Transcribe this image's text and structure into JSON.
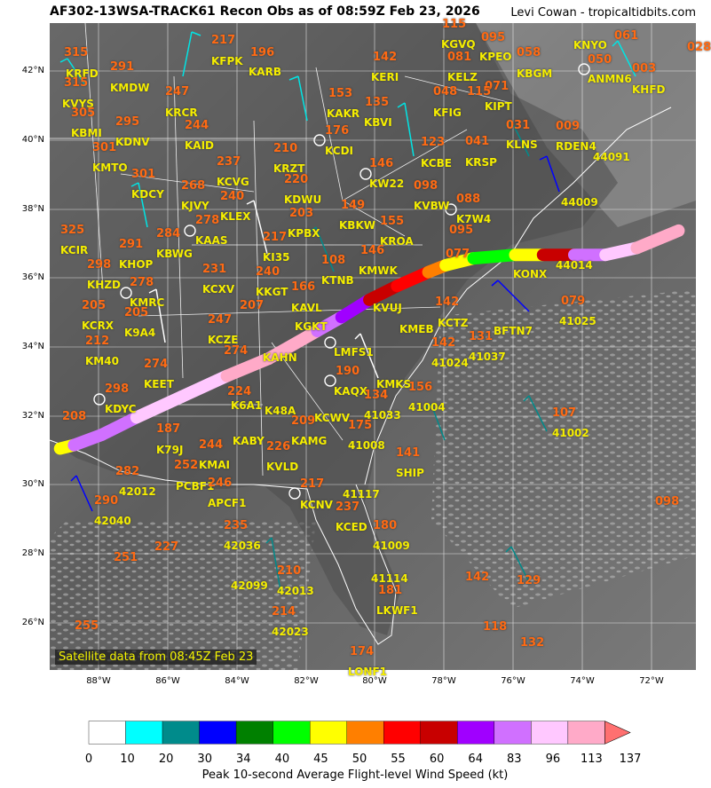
{
  "title": "AF302-13WSA-TRACK61 Recon Obs as of 08:59Z Feb 23, 2026",
  "credit": "Levi Cowan - tropicaltidbits.com",
  "satellite_note": "Satellite data from 08:45Z Feb 23",
  "lat_labels": [
    "42°N",
    "40°N",
    "38°N",
    "36°N",
    "34°N",
    "32°N",
    "30°N",
    "28°N",
    "26°N"
  ],
  "lon_labels": [
    "88°W",
    "86°W",
    "84°W",
    "82°W",
    "80°W",
    "78°W",
    "76°W",
    "74°W",
    "72°W"
  ],
  "colorbar": {
    "label": "Peak 10-second Average Flight-level Wind Speed (kt)",
    "ticks": [
      "0",
      "10",
      "20",
      "30",
      "34",
      "40",
      "45",
      "50",
      "55",
      "60",
      "64",
      "83",
      "96",
      "113",
      "137"
    ],
    "colors": [
      "#ffffff",
      "#00ffff",
      "#008b8b",
      "#0000ff",
      "#008000",
      "#00ff00",
      "#ffff00",
      "#ff7f00",
      "#ff0000",
      "#c80000",
      "#a000ff",
      "#d070ff",
      "#ffc8ff",
      "#ffaac8",
      "#ff7070"
    ]
  },
  "stations": [
    {
      "id": "KRFD"
    },
    {
      "id": "KMDW"
    },
    {
      "id": "KFPK"
    },
    {
      "id": "KARB"
    },
    {
      "id": "KERI"
    },
    {
      "id": "KGVQ"
    },
    {
      "id": "KPEO"
    },
    {
      "id": "KNYO"
    },
    {
      "id": "KBGM"
    },
    {
      "id": "KELZ"
    },
    {
      "id": "ANMN6"
    },
    {
      "id": "KHFD"
    },
    {
      "id": "KVYS"
    },
    {
      "id": "KRCR"
    },
    {
      "id": "KAKR"
    },
    {
      "id": "KBVI"
    },
    {
      "id": "KFIG"
    },
    {
      "id": "KIPT"
    },
    {
      "id": "KBMI"
    },
    {
      "id": "KDNV"
    },
    {
      "id": "KAID"
    },
    {
      "id": "KCDI"
    },
    {
      "id": "KLNS"
    },
    {
      "id": "RDEN4"
    },
    {
      "id": "44091"
    },
    {
      "id": "KMTO"
    },
    {
      "id": "KRZT"
    },
    {
      "id": "KCBE"
    },
    {
      "id": "KRSP"
    },
    {
      "id": "KDCY"
    },
    {
      "id": "KCVG"
    },
    {
      "id": "KW22"
    },
    {
      "id": "KVBW"
    },
    {
      "id": "44009"
    },
    {
      "id": "KJVY"
    },
    {
      "id": "KDWU"
    },
    {
      "id": "KLEX"
    },
    {
      "id": "K7W4"
    },
    {
      "id": "KBKW"
    },
    {
      "id": "KCIR"
    },
    {
      "id": "KAAS"
    },
    {
      "id": "KPBX"
    },
    {
      "id": "KROA"
    },
    {
      "id": "KBWG"
    },
    {
      "id": "KI35"
    },
    {
      "id": "KKGT"
    },
    {
      "id": "KHOP"
    },
    {
      "id": "KMWK"
    },
    {
      "id": "KTNB"
    },
    {
      "id": "44014"
    },
    {
      "id": "KHZD"
    },
    {
      "id": "KCXV"
    },
    {
      "id": "KGKT"
    },
    {
      "id": "KMRC"
    },
    {
      "id": "KAVL"
    },
    {
      "id": "KVUJ"
    },
    {
      "id": "KONX"
    },
    {
      "id": "41025"
    },
    {
      "id": "KCRX"
    },
    {
      "id": "K9A4"
    },
    {
      "id": "KCZE"
    },
    {
      "id": "KMEB"
    },
    {
      "id": "KCTZ"
    },
    {
      "id": "BFTN7"
    },
    {
      "id": "KM40"
    },
    {
      "id": "KAHN"
    },
    {
      "id": "LMFS1"
    },
    {
      "id": "41024"
    },
    {
      "id": "41037"
    },
    {
      "id": "KEET"
    },
    {
      "id": "KAQX"
    },
    {
      "id": "KMKS"
    },
    {
      "id": "K6A1"
    },
    {
      "id": "K48A"
    },
    {
      "id": "41004"
    },
    {
      "id": "KDYC"
    },
    {
      "id": "KCWV"
    },
    {
      "id": "41033"
    },
    {
      "id": "41002"
    },
    {
      "id": "KABY"
    },
    {
      "id": "KAMG"
    },
    {
      "id": "41008"
    },
    {
      "id": "K79J"
    },
    {
      "id": "KMAI"
    },
    {
      "id": "KVLD"
    },
    {
      "id": "SHIP"
    },
    {
      "id": "42012"
    },
    {
      "id": "PCBF1"
    },
    {
      "id": "41117"
    },
    {
      "id": "APCF1"
    },
    {
      "id": "KCNV"
    },
    {
      "id": "42040"
    },
    {
      "id": "KCED"
    },
    {
      "id": "41009"
    },
    {
      "id": "42036"
    },
    {
      "id": "42099"
    },
    {
      "id": "42013"
    },
    {
      "id": "41114"
    },
    {
      "id": "LKWF1"
    },
    {
      "id": "42023"
    },
    {
      "id": "LONF1"
    }
  ],
  "obs_values": [
    "315",
    "291",
    "217",
    "196",
    "142",
    "115",
    "095",
    "058",
    "081",
    "061",
    "028",
    "315",
    "247",
    "153",
    "135",
    "048",
    "071",
    "050",
    "003",
    "305",
    "295",
    "244",
    "176",
    "123",
    "041",
    "031",
    "009",
    "301",
    "210",
    "146",
    "098",
    "088",
    "301",
    "268",
    "237",
    "220",
    "149",
    "155",
    "095",
    "325",
    "278",
    "240",
    "203",
    "146",
    "108",
    "291",
    "284",
    "217",
    "077",
    "298",
    "231",
    "240",
    "166",
    "142",
    "079",
    "205",
    "278",
    "205",
    "207",
    "247",
    "142",
    "131",
    "212",
    "224",
    "190",
    "134",
    "274",
    "298",
    "274",
    "156",
    "208",
    "209",
    "187",
    "175",
    "107",
    "252",
    "244",
    "226",
    "141",
    "282",
    "290",
    "246",
    "217",
    "237",
    "180",
    "227",
    "235",
    "251",
    "210",
    "214",
    "142",
    "129",
    "181",
    "098",
    "255",
    "118",
    "132",
    "174",
    "115"
  ],
  "chart_data": {
    "type": "map",
    "projection": "plate-carree",
    "lon_range": [
      -89.4,
      -70.8
    ],
    "lat_range": [
      24.6,
      43.3
    ],
    "track_note": "flight track colored by peak wind speed (kt)",
    "track": [
      {
        "lon": -89.1,
        "lat": 31.0,
        "wind": 45
      },
      {
        "lon": -88.7,
        "lat": 31.1,
        "wind": 83
      },
      {
        "lon": -87.9,
        "lat": 31.4,
        "wind": 83
      },
      {
        "lon": -86.9,
        "lat": 31.9,
        "wind": 96
      },
      {
        "lon": -85.6,
        "lat": 32.5,
        "wind": 96
      },
      {
        "lon": -84.3,
        "lat": 33.1,
        "wind": 113
      },
      {
        "lon": -83.1,
        "lat": 33.6,
        "wind": 113
      },
      {
        "lon": -81.7,
        "lat": 34.4,
        "wind": 83
      },
      {
        "lon": -81.0,
        "lat": 34.8,
        "wind": 64
      },
      {
        "lon": -80.2,
        "lat": 35.3,
        "wind": 60
      },
      {
        "lon": -79.4,
        "lat": 35.7,
        "wind": 55
      },
      {
        "lon": -78.5,
        "lat": 36.1,
        "wind": 50
      },
      {
        "lon": -78.0,
        "lat": 36.3,
        "wind": 45
      },
      {
        "lon": -77.2,
        "lat": 36.5,
        "wind": 40
      },
      {
        "lon": -76.0,
        "lat": 36.6,
        "wind": 45
      },
      {
        "lon": -75.2,
        "lat": 36.6,
        "wind": 60
      },
      {
        "lon": -74.3,
        "lat": 36.6,
        "wind": 83
      },
      {
        "lon": -73.4,
        "lat": 36.6,
        "wind": 96
      },
      {
        "lon": -72.5,
        "lat": 36.8,
        "wind": 113
      },
      {
        "lon": -71.3,
        "lat": 37.3,
        "wind": 113
      }
    ]
  }
}
